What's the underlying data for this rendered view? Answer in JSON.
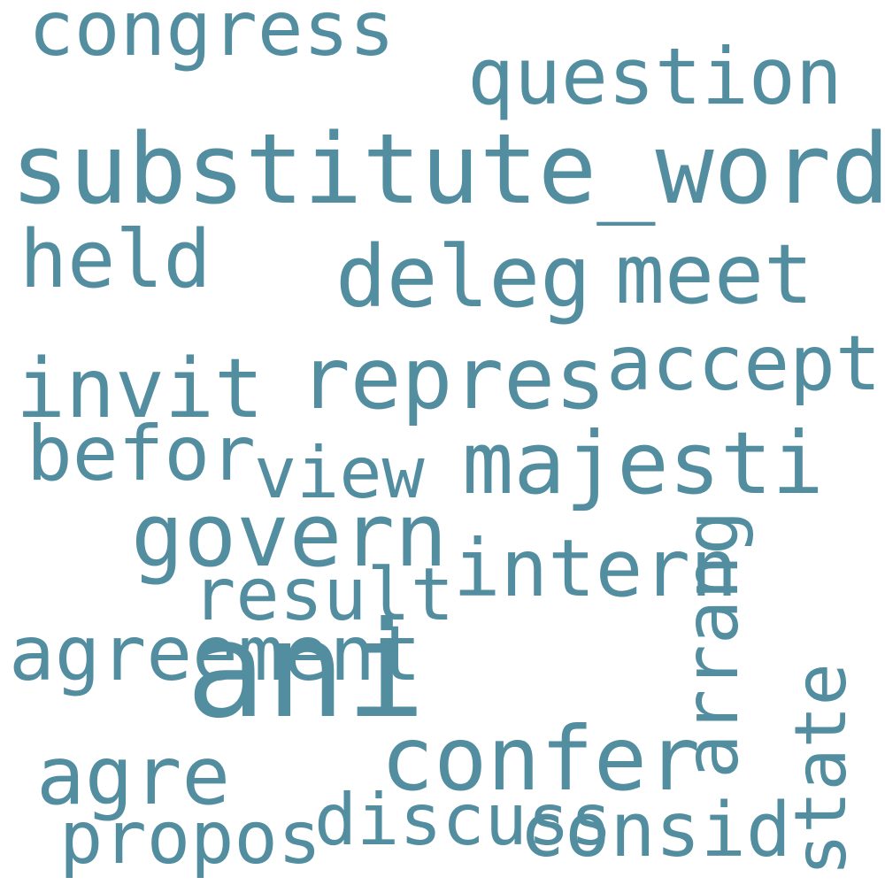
{
  "color": "#528da0",
  "words": [
    "congress",
    "question",
    "substitute_word",
    "held",
    "deleg",
    "meet",
    "invit",
    "repres",
    "accept",
    "befor",
    "view",
    "majesti",
    "govern",
    "intern",
    "result",
    "agreement",
    "ani",
    "confer",
    "agre",
    "propos",
    "discuss",
    "consid",
    "arrang",
    "state"
  ]
}
